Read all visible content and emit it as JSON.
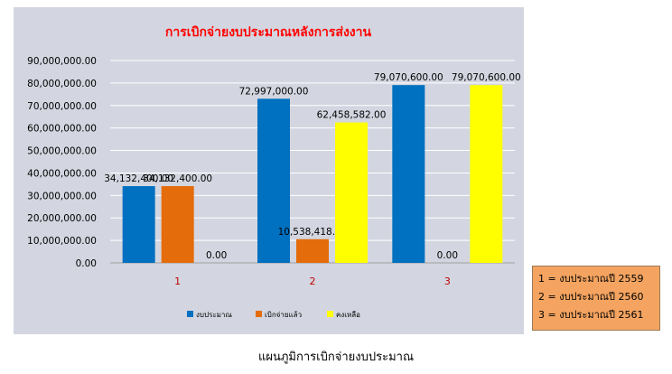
{
  "chart_data": {
    "type": "bar",
    "title": "การเบิกจ่ายงบประมาณหลังการส่งงาน",
    "categories": [
      "1",
      "2",
      "3"
    ],
    "series": [
      {
        "name": "งบประมาณ",
        "color": "#0070c0",
        "values": [
          34132400.0,
          72997000.0,
          79070600.0
        ]
      },
      {
        "name": "เบิกจ่ายแล้ว",
        "color": "#e46c0a",
        "values": [
          34132400.0,
          10538418.0,
          0.0
        ]
      },
      {
        "name": "คงเหลือ",
        "color": "#ffff00",
        "values": [
          0.0,
          62458582.0,
          79070600.0
        ]
      }
    ],
    "data_labels": [
      [
        "34,132,400.00",
        "34,132,400.00",
        "0.00"
      ],
      [
        "72,997,000.00",
        "10,538,418.00",
        "62,458,582.00"
      ],
      [
        "79,070,600.00",
        "0.00",
        "79,070,600.00"
      ]
    ],
    "y_tick_labels": [
      "0.00",
      "10,000,000.00",
      "20,000,000.00",
      "30,000,000.00",
      "40,000,000.00",
      "50,000,000.00",
      "60,000,000.00",
      "70,000,000.00",
      "80,000,000.00",
      "90,000,000.00"
    ],
    "ylim": [
      0,
      90000000
    ],
    "grid": true,
    "legend_position": "bottom",
    "title_color": "#ff0000",
    "category_label_color": "#c00000",
    "background_color": "#d3d6e0"
  },
  "note": {
    "lines": [
      "1 = งบประมาณปี 2559",
      "2 = งบประมาณปี 2560",
      "3 = งบประมาณปี 2561"
    ],
    "background_color": "#f4a460"
  },
  "caption": "แผนภูมิการเบิกจ่ายงบประมาณ"
}
